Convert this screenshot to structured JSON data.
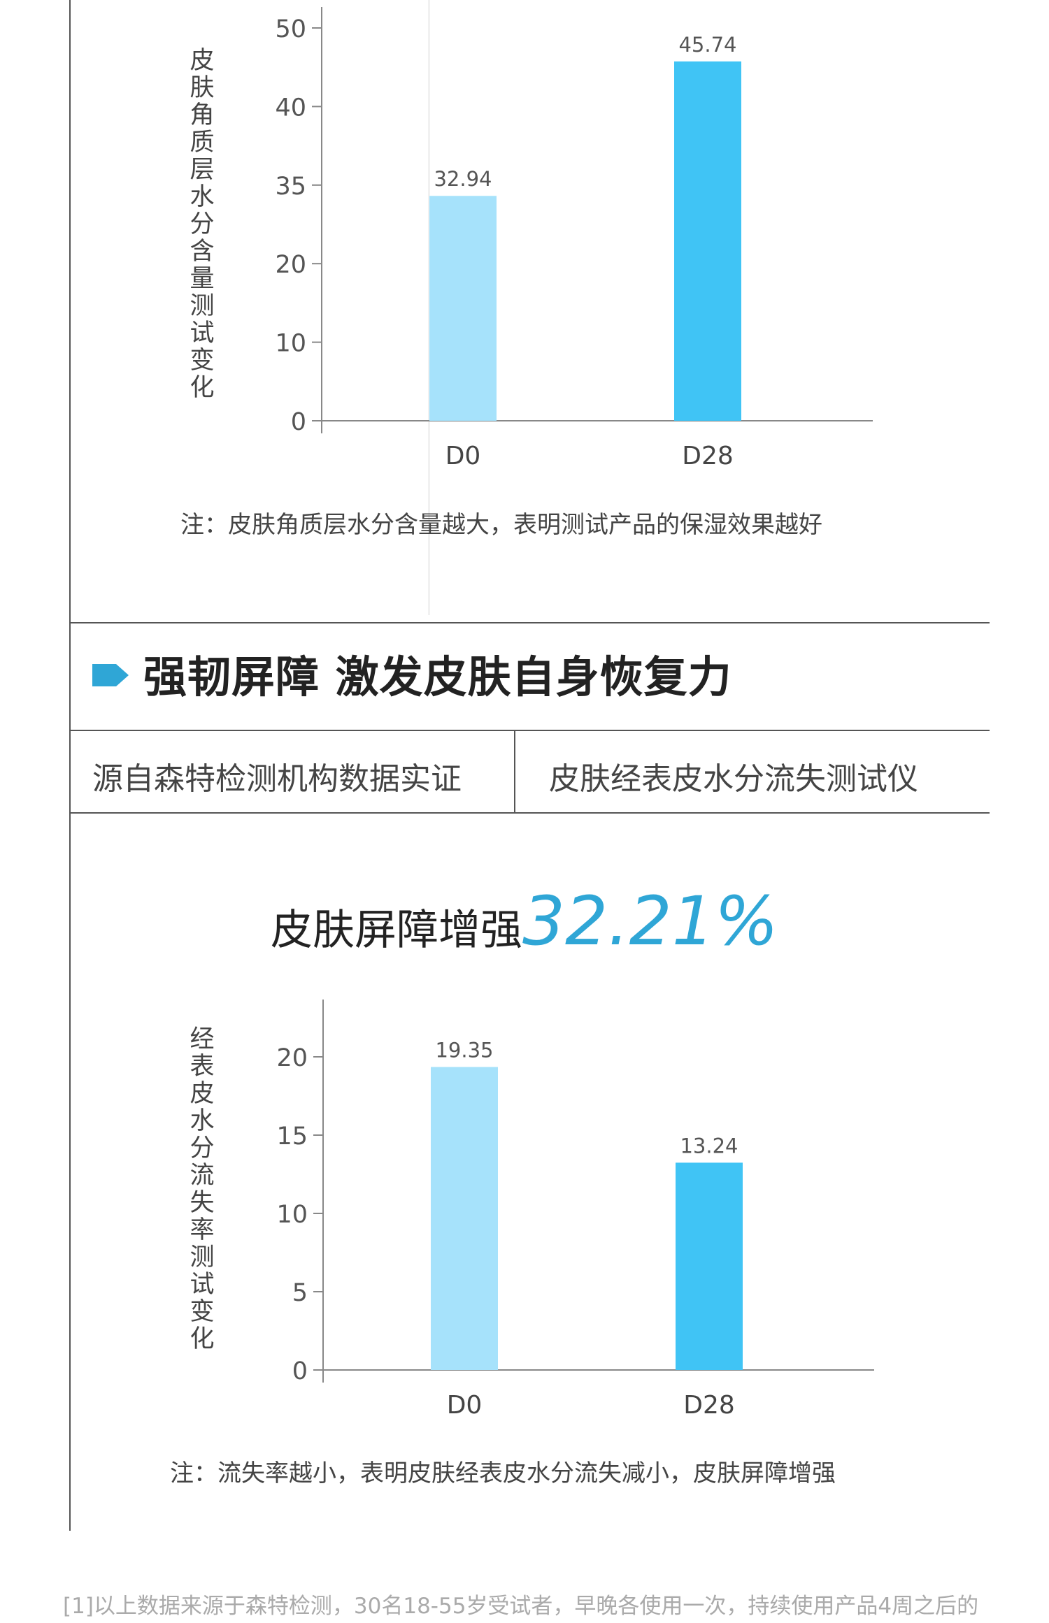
{
  "chart1": {
    "ylabel": "皮肤角质层水分含量测试变化",
    "note": "注：皮肤角质层水分含量越大，表明测试产品的保湿效果越好",
    "chart_data": {
      "type": "bar",
      "categories": [
        "D0",
        "D28"
      ],
      "values": [
        32.94,
        45.74
      ],
      "data_labels": [
        "32.94",
        "45.74"
      ],
      "yticks": [
        0,
        10,
        20,
        35,
        40,
        50
      ],
      "ylim": [
        0,
        50
      ],
      "xlabel": "",
      "ylabel": "皮肤角质层水分含量测试变化",
      "bar_colors": [
        "#a6e2fb",
        "#40c4f5"
      ],
      "grid": false
    }
  },
  "section": {
    "title": "强韧屏障 激发皮肤自身恢复力",
    "marker_color": "#2fa6d6",
    "left_cell": "源自森特检测机构数据实证",
    "right_cell": "皮肤经表皮水分流失测试仪"
  },
  "headline": {
    "text": "皮肤屏障增强",
    "percent": "32.21%",
    "percent_color": "#2fa6d6"
  },
  "chart2": {
    "ylabel": "经表皮水分流失率测试变化",
    "note": "注：流失率越小，表明皮肤经表皮水分流失减小，皮肤屏障增强",
    "chart_data": {
      "type": "bar",
      "categories": [
        "D0",
        "D28"
      ],
      "values": [
        19.35,
        13.24
      ],
      "data_labels": [
        "19.35",
        "13.24"
      ],
      "yticks": [
        0,
        5,
        10,
        15,
        20
      ],
      "ylim": [
        0,
        20
      ],
      "xlabel": "",
      "ylabel": "经表皮水分流失率测试变化",
      "bar_colors": [
        "#a6e2fb",
        "#40c4f5"
      ],
      "grid": false
    }
  },
  "footnote": "[1]以上数据来源于森特检测，30名18-55岁受试者，早晚各使用一次，持续使用产品4周之后的"
}
